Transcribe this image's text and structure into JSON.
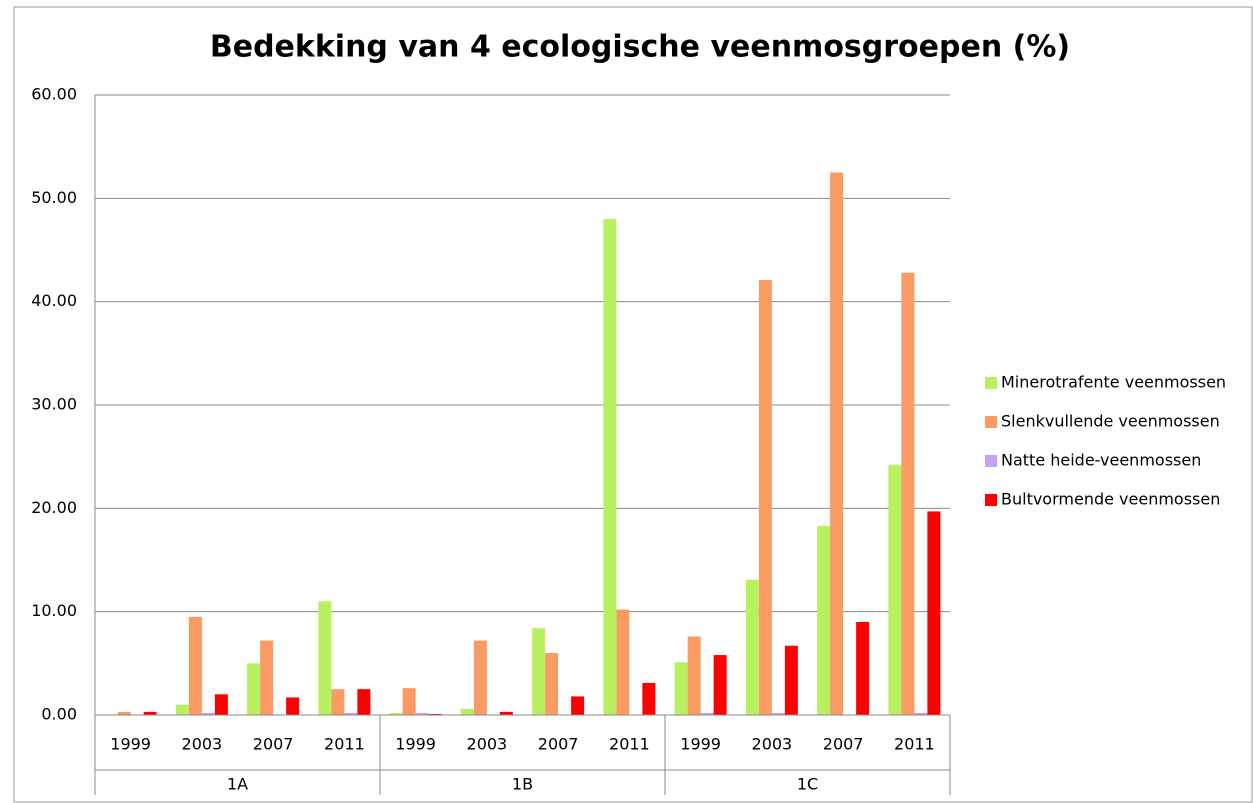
{
  "chart_data": {
    "type": "bar",
    "title": "Bedekking van 4 ecologische veenmosgroepen (%)",
    "categories": [
      "1999",
      "2003",
      "2007",
      "2011",
      "1999",
      "2003",
      "2007",
      "2011",
      "1999",
      "2003",
      "2007",
      "2011"
    ],
    "groups": [
      "1A",
      "1B",
      "1C"
    ],
    "series": [
      {
        "name": "Minerotrafente veenmossen",
        "color": "#b8f060",
        "values": [
          0,
          1.0,
          5.0,
          11.0,
          0.2,
          0.6,
          8.4,
          48.0,
          5.1,
          13.1,
          18.3,
          24.2
        ]
      },
      {
        "name": "Slenkvullende veenmossen",
        "color": "#fb9b64",
        "values": [
          0.3,
          9.5,
          7.2,
          2.5,
          2.6,
          7.2,
          6.0,
          10.2,
          7.6,
          42.1,
          52.5,
          42.8
        ]
      },
      {
        "name": "Natte heide-veenmossen",
        "color": "#c8a0f5",
        "values": [
          0,
          0.2,
          0,
          0.2,
          0.2,
          0,
          0,
          0,
          0.2,
          0.2,
          0,
          0.2
        ]
      },
      {
        "name": "Bultvormende veenmossen",
        "color": "#ff0000",
        "values": [
          0.3,
          2.0,
          1.7,
          2.5,
          0.1,
          0.3,
          1.8,
          3.1,
          5.8,
          6.7,
          9.0,
          19.7
        ]
      }
    ],
    "ylim": [
      0,
      60
    ],
    "yticks": [
      {
        "value": 0,
        "label": "0.00"
      },
      {
        "value": 10,
        "label": "10.00"
      },
      {
        "value": 20,
        "label": "20.00"
      },
      {
        "value": 30,
        "label": "30.00"
      },
      {
        "value": 40,
        "label": "40.00"
      },
      {
        "value": 50,
        "label": "50.00"
      },
      {
        "value": 60,
        "label": "60.00"
      }
    ],
    "grid": true,
    "legend": "right"
  }
}
